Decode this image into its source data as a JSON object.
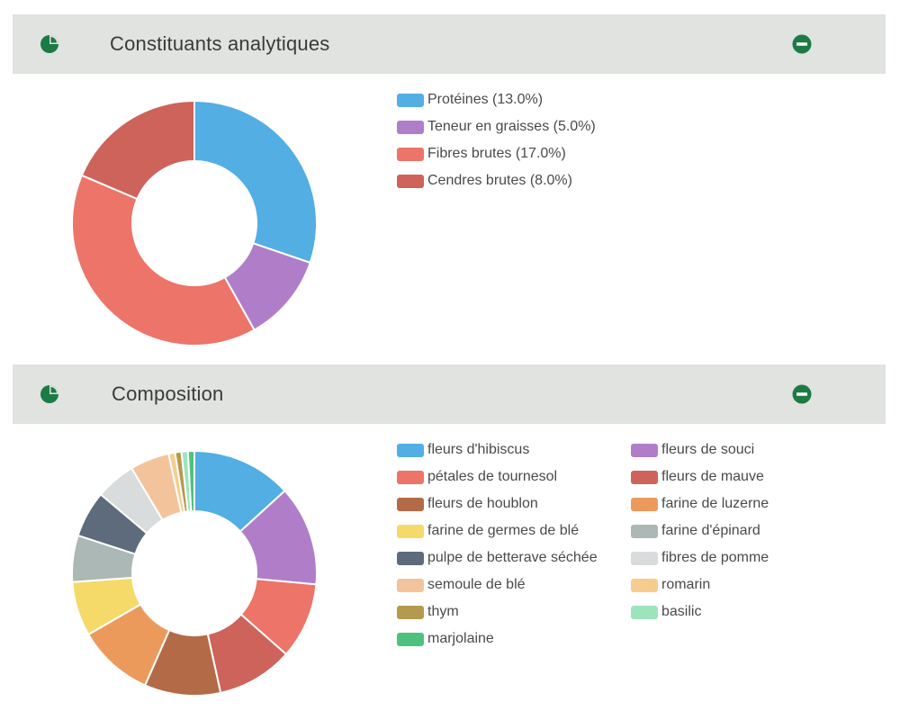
{
  "sections": [
    {
      "title": "Constituants analytiques",
      "header_icon": "pie-chart-icon",
      "collapse_icon": "minus-circle-icon",
      "accent_color": "#1e7a44"
    },
    {
      "title": "Composition",
      "header_icon": "pie-chart-icon",
      "collapse_icon": "minus-circle-icon",
      "accent_color": "#1e7a44"
    }
  ],
  "chart_data": [
    {
      "type": "pie",
      "donut": true,
      "legend_position": "right",
      "series": [
        {
          "label": "Protéines (13.0%)",
          "value": 13.0,
          "color": "#52aee3"
        },
        {
          "label": "Teneur en graisses (5.0%)",
          "value": 5.0,
          "color": "#b07ec8"
        },
        {
          "label": "Fibres brutes (17.0%)",
          "value": 17.0,
          "color": "#ec7468"
        },
        {
          "label": "Cendres brutes (8.0%)",
          "value": 8.0,
          "color": "#cd635a"
        }
      ]
    },
    {
      "type": "pie",
      "donut": true,
      "legend_position": "right",
      "series": [
        {
          "label": "fleurs d'hibiscus",
          "value": 12.5,
          "color": "#52aee3"
        },
        {
          "label": "fleurs de souci",
          "value": 12.5,
          "color": "#b07ec8"
        },
        {
          "label": "pétales de tournesol",
          "value": 9.5,
          "color": "#ec7468"
        },
        {
          "label": "fleurs de mauve",
          "value": 9.5,
          "color": "#cd635a"
        },
        {
          "label": "fleurs de houblon",
          "value": 9.5,
          "color": "#b36b47"
        },
        {
          "label": "farine de luzerne",
          "value": 9.5,
          "color": "#ec9a5c"
        },
        {
          "label": "farine de germes de blé",
          "value": 6.8,
          "color": "#f5da6a"
        },
        {
          "label": "farine d'épinard",
          "value": 5.8,
          "color": "#abb8b5"
        },
        {
          "label": "pulpe de betterave séchée",
          "value": 5.8,
          "color": "#5d6b7d"
        },
        {
          "label": "fibres de pomme",
          "value": 5.0,
          "color": "#d9dcdc"
        },
        {
          "label": "semoule de blé",
          "value": 4.9,
          "color": "#f3c49b"
        },
        {
          "label": "romarin",
          "value": 0.8,
          "color": "#f6cd8f"
        },
        {
          "label": "thym",
          "value": 0.8,
          "color": "#b49a4e"
        },
        {
          "label": "basilic",
          "value": 0.8,
          "color": "#9fe3bd"
        },
        {
          "label": "marjolaine",
          "value": 0.8,
          "color": "#4ec27d"
        }
      ]
    }
  ]
}
